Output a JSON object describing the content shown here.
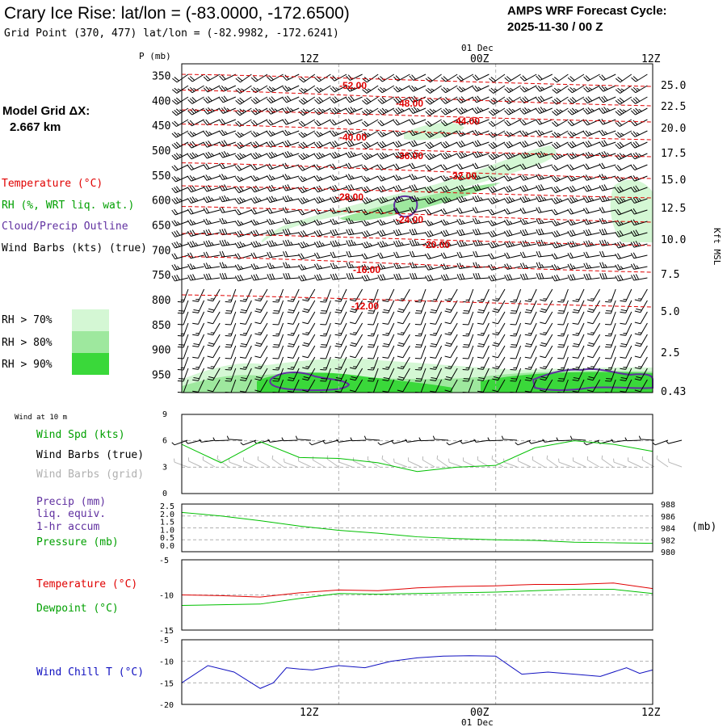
{
  "header": {
    "title": "Crary Ice Rise:  lat/lon = (-83.0000, -172.6500)",
    "gridpoint": "Grid Point (370, 477) lat/lon = (-82.9982, -172.6241)",
    "cycle_label": "AMPS WRF Forecast Cycle:",
    "cycle_value": "2025-11-30 / 00  Z"
  },
  "left_legend": {
    "model_grid_label": "Model Grid ΔX:",
    "model_grid_value": "2.667 km",
    "temperature": "Temperature (°C)",
    "rh": "RH (%, WRT liq. wat.)",
    "cloud": "Cloud/Precip Outline",
    "wind_barbs": "Wind Barbs (kts) (true)",
    "rh70": "RH > 70%",
    "rh80": "RH > 80%",
    "rh90": "RH > 90%"
  },
  "colors": {
    "temperature": "#e00000",
    "rh_label": "#00a000",
    "cloud": "#6030a0",
    "rh70": "#d4f7d4",
    "rh80": "#9ee89e",
    "rh90": "#3ad83a",
    "green_line": "#00c000",
    "blue_line": "#1010c0",
    "grid_barb": "#b8b8b8"
  },
  "time_axis": {
    "top_date": "01 Dec",
    "bottom_date": "01 Dec",
    "ticks": [
      "12Z",
      "00Z",
      "12Z"
    ]
  },
  "chart_data": [
    {
      "id": "cross_section",
      "type": "heatmap",
      "ylabel": "P (mb)",
      "y_right_label": "Kft MSL",
      "pressure_ticks": [
        "350",
        "400",
        "450",
        "500",
        "550",
        "600",
        "650",
        "700",
        "750",
        "800",
        "850",
        "900",
        "950"
      ],
      "height_ticks_kft": [
        "25.0",
        "22.5",
        "20.0",
        "17.5",
        "15.0",
        "12.5",
        "10.0",
        "7.5",
        "5.0",
        "2.5",
        "0.43"
      ],
      "isotherms": [
        {
          "label": "-52.00",
          "value": -52
        },
        {
          "label": "-48.00",
          "value": -48
        },
        {
          "label": "-44.00",
          "value": -44
        },
        {
          "label": "-40.00",
          "value": -40
        },
        {
          "label": "-36.00",
          "value": -36
        },
        {
          "label": "-32.00",
          "value": -32
        },
        {
          "label": "-28.00",
          "value": -28
        },
        {
          "label": "-24.00",
          "value": -24
        },
        {
          "label": "-20.00",
          "value": -20
        },
        {
          "label": "-16.00",
          "value": -16
        },
        {
          "label": "-12.00",
          "value": -12
        }
      ]
    },
    {
      "id": "wind10m",
      "type": "line",
      "title": "Wind at 10 m",
      "legend": [
        "Wind Spd (kts)",
        "Wind Barbs (true)",
        "Wind Barbs (grid)"
      ],
      "y_ticks": [
        "9",
        "6",
        "3",
        "0"
      ],
      "ylim": [
        0,
        9
      ],
      "hours": [
        0,
        3,
        6,
        9,
        12,
        15,
        18,
        21,
        24,
        27,
        30,
        33,
        36
      ],
      "speed_kts": [
        5.6,
        3.5,
        5.9,
        4.1,
        4.0,
        3.5,
        2.5,
        3.0,
        3.2,
        5.2,
        6.0,
        5.6,
        4.8
      ]
    },
    {
      "id": "precip_pressure",
      "type": "line",
      "legend": [
        "Precip (mm)",
        "liq. equiv.",
        "1-hr accum",
        "Pressure (mb)"
      ],
      "precip_ticks": [
        "2.5",
        "2.0",
        "1.5",
        "1.0",
        "0.5",
        "0.0"
      ],
      "pressure_ticks": [
        "988",
        "986",
        "984",
        "982",
        "980"
      ],
      "right_unit": "(mb)",
      "pressure_ylim": [
        980,
        988
      ],
      "hours": [
        0,
        3,
        6,
        9,
        12,
        15,
        18,
        21,
        24,
        27,
        30,
        33,
        36
      ],
      "pressure_mb": [
        986.6,
        986.0,
        985.2,
        984.3,
        983.6,
        983.1,
        982.5,
        982.2,
        982.0,
        981.9,
        981.6,
        981.5,
        981.4
      ]
    },
    {
      "id": "temperature",
      "type": "line",
      "legend": [
        "Temperature (°C)",
        "Dewpoint (°C)"
      ],
      "y_ticks": [
        "-5",
        "-10",
        "-15"
      ],
      "ylim": [
        -15,
        -5
      ],
      "hours": [
        0,
        3,
        6,
        9,
        12,
        15,
        18,
        21,
        24,
        27,
        30,
        33,
        36
      ],
      "temperature_c": [
        -10.0,
        -10.1,
        -10.3,
        -9.7,
        -9.3,
        -9.4,
        -9.0,
        -8.8,
        -8.7,
        -8.5,
        -8.5,
        -8.3,
        -9.1
      ],
      "dewpoint_c": [
        -11.5,
        -11.4,
        -11.3,
        -10.5,
        -9.8,
        -9.9,
        -9.8,
        -9.7,
        -9.6,
        -9.4,
        -9.2,
        -9.2,
        -9.8
      ]
    },
    {
      "id": "windchill",
      "type": "line",
      "legend": [
        "Wind Chill T (°C)"
      ],
      "y_ticks": [
        "-5",
        "-10",
        "-15",
        "-20"
      ],
      "ylim": [
        -20,
        -5
      ],
      "hours": [
        0,
        2,
        4,
        6,
        7,
        8,
        9,
        10,
        12,
        14,
        16,
        18,
        20,
        22,
        24,
        26,
        28,
        30,
        32,
        34,
        35,
        36
      ],
      "windchill_c": [
        -15.0,
        -11.0,
        -12.5,
        -16.3,
        -15.0,
        -11.5,
        -11.8,
        -12.0,
        -11.0,
        -11.5,
        -10.0,
        -9.2,
        -8.8,
        -8.7,
        -8.8,
        -13.0,
        -12.5,
        -13.0,
        -13.5,
        -11.5,
        -12.8,
        -12.0
      ]
    }
  ]
}
